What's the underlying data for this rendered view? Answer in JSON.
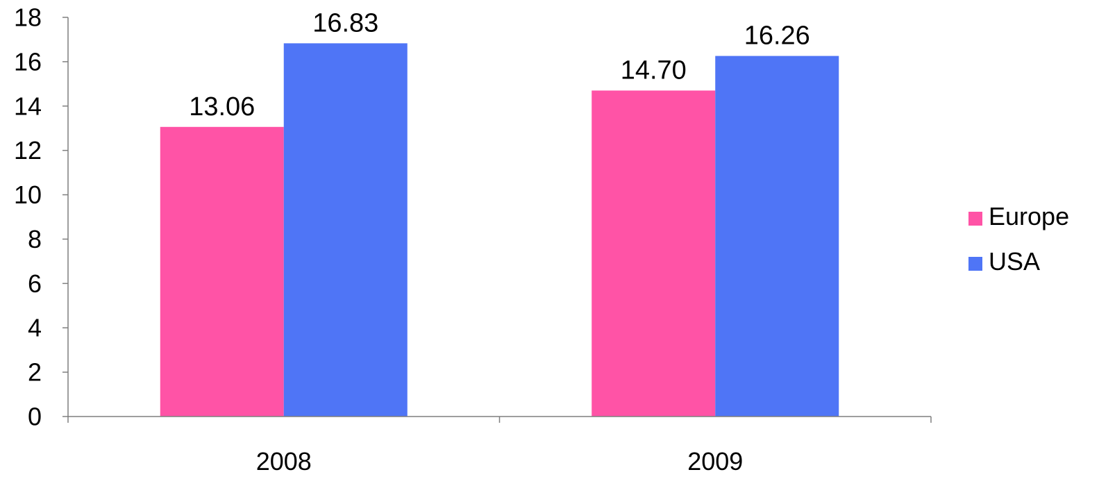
{
  "chart_data": {
    "type": "bar",
    "categories": [
      "2008",
      "2009"
    ],
    "series": [
      {
        "name": "Europe",
        "values": [
          13.06,
          14.7
        ],
        "labels": [
          "13.06",
          "14.70"
        ],
        "color": "#FF53A6"
      },
      {
        "name": "USA",
        "values": [
          16.83,
          16.26
        ],
        "labels": [
          "16.83",
          "16.26"
        ],
        "color": "#4F75F6"
      }
    ],
    "ylim": [
      0,
      18
    ],
    "yticks": [
      "0",
      "2",
      "4",
      "6",
      "8",
      "10",
      "12",
      "14",
      "16",
      "18"
    ],
    "grid": false,
    "legend": "right"
  }
}
